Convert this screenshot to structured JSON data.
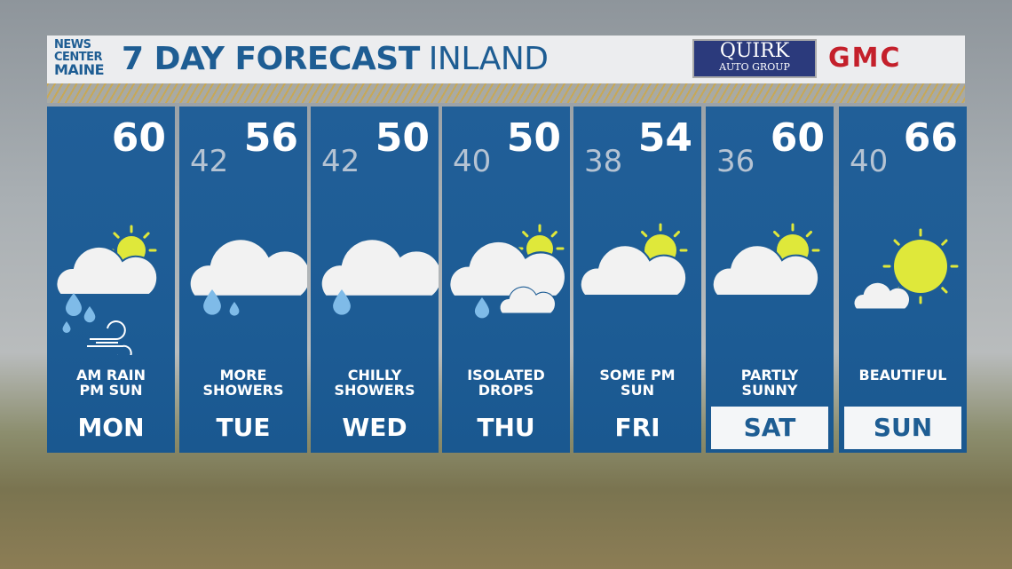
{
  "header": {
    "logo": [
      "NEWS",
      "CENTER",
      "MAINE"
    ],
    "title": "7 DAY FORECAST",
    "subtitle": "INLAND",
    "sponsor": {
      "name": "QUIRK",
      "tagline": "AUTO GROUP"
    },
    "brand": "GMC"
  },
  "colors": {
    "panel": "#1e5d95",
    "sun": "#dfe83a",
    "rain": "#7fbbe8",
    "cloud": "#f2f2f2"
  },
  "days": [
    {
      "day": "MON",
      "high": "60",
      "low": "",
      "desc1": "AM RAIN",
      "desc2": "PM SUN",
      "icon": "rain-sun-wind",
      "weekend": false
    },
    {
      "day": "TUE",
      "high": "56",
      "low": "42",
      "desc1": "MORE",
      "desc2": "SHOWERS",
      "icon": "cloud-rain",
      "weekend": false
    },
    {
      "day": "WED",
      "high": "50",
      "low": "42",
      "desc1": "CHILLY",
      "desc2": "SHOWERS",
      "icon": "cloud-drop",
      "weekend": false
    },
    {
      "day": "THU",
      "high": "50",
      "low": "40",
      "desc1": "ISOLATED",
      "desc2": "DROPS",
      "icon": "sun-clouds-drop",
      "weekend": false
    },
    {
      "day": "FRI",
      "high": "54",
      "low": "38",
      "desc1": "SOME PM",
      "desc2": "SUN",
      "icon": "partly-cloudy",
      "weekend": false
    },
    {
      "day": "SAT",
      "high": "60",
      "low": "36",
      "desc1": "PARTLY",
      "desc2": "SUNNY",
      "icon": "partly-cloudy",
      "weekend": true
    },
    {
      "day": "SUN",
      "high": "66",
      "low": "40",
      "desc1": "",
      "desc2": "BEAUTIFUL",
      "icon": "mostly-sunny",
      "weekend": true
    }
  ]
}
